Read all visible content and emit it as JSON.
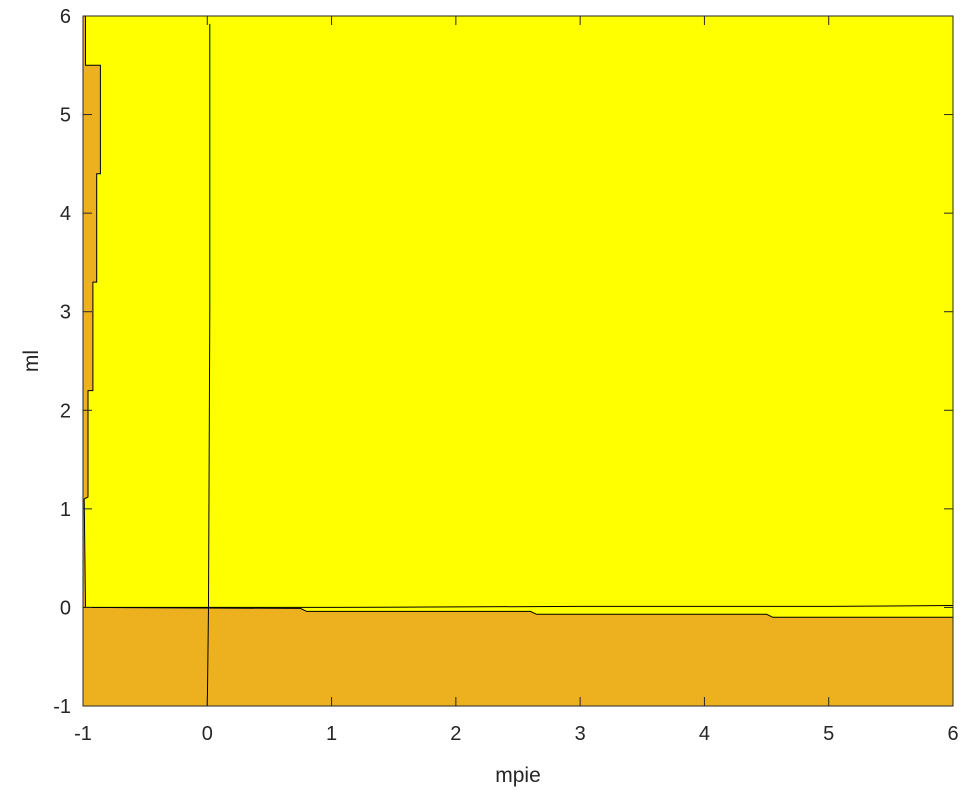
{
  "chart_data": {
    "type": "contour",
    "title": "",
    "xlabel": "mpie",
    "ylabel": "ml",
    "xlim": [
      -1,
      6
    ],
    "ylim": [
      -1,
      6
    ],
    "xticks": [
      -1,
      0,
      1,
      2,
      3,
      4,
      5,
      6
    ],
    "yticks": [
      -1,
      0,
      1,
      2,
      3,
      4,
      5,
      6
    ],
    "xtick_labels": [
      "-1",
      "0",
      "1",
      "2",
      "3",
      "4",
      "5",
      "6"
    ],
    "ytick_labels": [
      "-1",
      "0",
      "1",
      "2",
      "3",
      "4",
      "5",
      "6"
    ],
    "grid": false,
    "colors": {
      "low_region": "#EDB120",
      "high_region": "#FFFF00",
      "contour_line": "#000000",
      "axes": "#262626"
    },
    "high_region_boundary": [
      [
        -0.98,
        6
      ],
      [
        -0.98,
        5.5
      ],
      [
        -0.86,
        5.5
      ],
      [
        -0.86,
        4.4
      ],
      [
        -0.89,
        4.4
      ],
      [
        -0.89,
        3.3
      ],
      [
        -0.92,
        3.3
      ],
      [
        -0.92,
        2.2
      ],
      [
        -0.96,
        2.2
      ],
      [
        -0.96,
        1.12
      ],
      [
        -0.99,
        1.1
      ],
      [
        -0.98,
        0.0
      ],
      [
        0.75,
        -0.01
      ],
      [
        0.8,
        -0.04
      ],
      [
        2.6,
        -0.04
      ],
      [
        2.65,
        -0.07
      ],
      [
        4.5,
        -0.07
      ],
      [
        4.55,
        -0.1
      ],
      [
        6,
        -0.1
      ]
    ],
    "contour_lines": [
      {
        "points": [
          [
            0.02,
            5.92
          ],
          [
            0.02,
            3
          ],
          [
            0.01,
            0
          ],
          [
            0.0,
            -1
          ]
        ]
      },
      {
        "points": [
          [
            -1,
            0.0
          ],
          [
            1,
            0.0
          ],
          [
            3,
            0.01
          ],
          [
            5,
            0.01
          ],
          [
            6,
            0.02
          ]
        ]
      }
    ]
  }
}
